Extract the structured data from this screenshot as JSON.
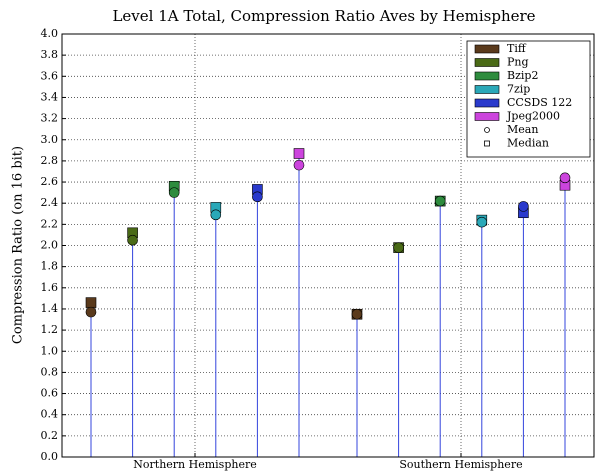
{
  "chart_data": {
    "type": "dot",
    "title": "Level 1A Total, Compression Ratio Aves by Hemisphere",
    "y_label": "Compression Ratio (on 16 bit)",
    "categories": [
      "Northern Hemisphere",
      "Southern Hemisphere"
    ],
    "series": [
      {
        "name": "Tiff",
        "color": "#5a3a1c",
        "mean": [
          1.37,
          1.35
        ],
        "median": [
          1.46,
          1.35
        ]
      },
      {
        "name": "Png",
        "color": "#4a6a16",
        "mean": [
          2.05,
          1.98
        ],
        "median": [
          2.12,
          1.98
        ]
      },
      {
        "name": "Bzip2",
        "color": "#2e8c3e",
        "mean": [
          2.5,
          2.42
        ],
        "median": [
          2.56,
          2.42
        ]
      },
      {
        "name": "7zip",
        "color": "#2aa8b8",
        "mean": [
          2.29,
          2.22
        ],
        "median": [
          2.36,
          2.24
        ]
      },
      {
        "name": "CCSDS 122",
        "color": "#2a3acc",
        "mean": [
          2.46,
          2.37
        ],
        "median": [
          2.53,
          2.31
        ]
      },
      {
        "name": "Jpeg2000",
        "color": "#cc44dd",
        "mean": [
          2.76,
          2.64
        ],
        "median": [
          2.87,
          2.57
        ]
      }
    ],
    "marker_labels": {
      "mean": "Mean",
      "median": "Median"
    },
    "stem_color": "#3344dd",
    "ylim": [
      0,
      4
    ],
    "yticks": [
      {
        "value": 0,
        "label": "0.0"
      },
      0.2,
      0.4,
      0.6,
      0.8,
      {
        "value": 1,
        "label": "1.0"
      },
      1.2,
      1.4,
      1.6,
      1.8,
      {
        "value": 2,
        "label": "2.0"
      },
      2.2,
      2.4,
      2.6,
      2.8,
      {
        "value": 3,
        "label": "3.0"
      },
      3.2,
      3.4,
      3.6,
      3.8,
      {
        "value": 4,
        "label": "4.0"
      }
    ],
    "grid": true,
    "legend": "upper right"
  }
}
